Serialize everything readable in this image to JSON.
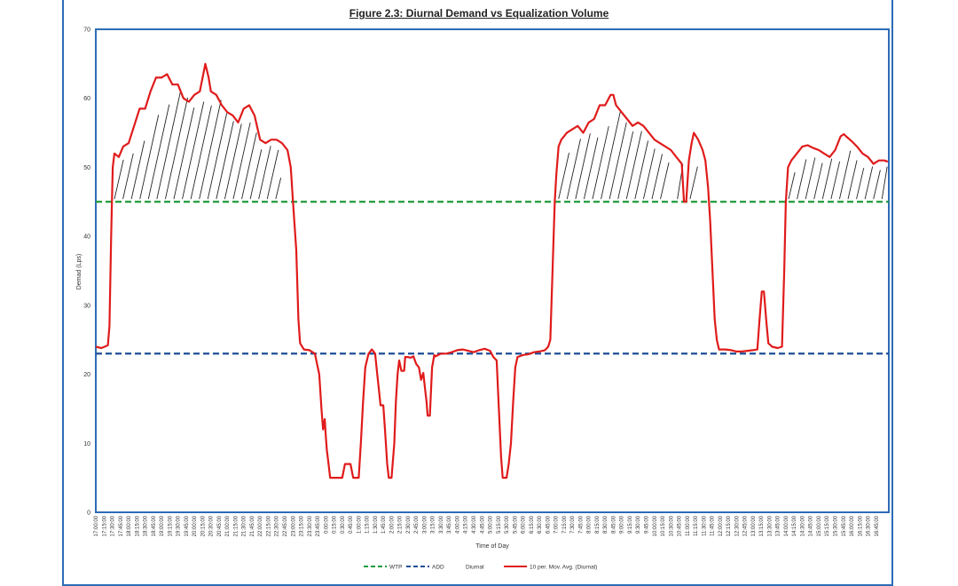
{
  "chart_data": {
    "type": "line",
    "title": "Figure 2.3: Diurnal Demand vs Equalization Volume",
    "xlabel": "Time of Day",
    "ylabel": "Demad (Lps)",
    "ylim": [
      0,
      70
    ],
    "yticks": [
      0,
      10,
      20,
      30,
      40,
      50,
      60,
      70
    ],
    "grid": false,
    "legend_position": "bottom",
    "x_tick_labels": [
      "17:00:00",
      "17:15:00",
      "17:30:00",
      "17:45:00",
      "18:00:00",
      "18:15:00",
      "18:30:00",
      "18:45:00",
      "19:00:00",
      "19:15:00",
      "19:30:00",
      "19:45:00",
      "20:00:00",
      "20:15:00",
      "20:30:00",
      "20:45:00",
      "21:00:00",
      "21:15:00",
      "21:30:00",
      "21:45:00",
      "22:00:00",
      "22:15:00",
      "22:30:00",
      "22:45:00",
      "23:00:00",
      "23:15:00",
      "23:30:00",
      "23:45:00",
      "0:00:00",
      "0:15:00",
      "0:30:00",
      "0:45:00",
      "1:00:00",
      "1:15:00",
      "1:30:00",
      "1:45:00",
      "2:00:00",
      "2:15:00",
      "2:30:00",
      "2:45:00",
      "3:00:00",
      "3:15:00",
      "3:30:00",
      "3:45:00",
      "4:00:00",
      "4:15:00",
      "4:30:00",
      "4:45:00",
      "5:00:00",
      "5:15:00",
      "5:30:00",
      "5:45:00",
      "6:00:00",
      "6:15:00",
      "6:30:00",
      "6:45:00",
      "7:00:00",
      "7:15:00",
      "7:30:00",
      "7:45:00",
      "8:00:00",
      "8:15:00",
      "8:30:00",
      "8:45:00",
      "9:00:00",
      "9:15:00",
      "9:30:00",
      "9:45:00",
      "10:00:00",
      "10:15:00",
      "10:30:00",
      "10:45:00",
      "11:00:00",
      "11:15:00",
      "11:30:00",
      "11:45:00",
      "12:00:00",
      "12:15:00",
      "12:30:00",
      "12:45:00",
      "13:00:00",
      "13:15:00",
      "13:30:00",
      "13:45:00",
      "14:00:00",
      "14:15:00",
      "14:30:00",
      "14:45:00",
      "15:00:00",
      "15:15:00",
      "15:30:00",
      "15:45:00",
      "16:00:00",
      "16:15:00",
      "16:30:00",
      "16:45:00"
    ],
    "series": [
      {
        "name": "WTP",
        "color": "#1e9b3a",
        "style": "dashed",
        "constant": 45
      },
      {
        "name": "ADD",
        "color": "#1f4e96",
        "style": "dashed",
        "constant": 23
      },
      {
        "name": "Diurnal",
        "color": "#ffffff",
        "style": "none"
      },
      {
        "name": "10 per. Mov. Avg. (Diurnal)",
        "color": "#e01b1b",
        "style": "solid",
        "points": [
          [
            0,
            24
          ],
          [
            1,
            23.8
          ],
          [
            1.6,
            24
          ],
          [
            2.2,
            24.2
          ],
          [
            2.5,
            27
          ],
          [
            2.8,
            40
          ],
          [
            3.1,
            50
          ],
          [
            3.4,
            52
          ],
          [
            4.2,
            51.5
          ],
          [
            5,
            53
          ],
          [
            6,
            53.5
          ],
          [
            7,
            56
          ],
          [
            8,
            58.5
          ],
          [
            9,
            58.5
          ],
          [
            10,
            61
          ],
          [
            11,
            63
          ],
          [
            12,
            63
          ],
          [
            13,
            63.5
          ],
          [
            14,
            62
          ],
          [
            15,
            62
          ],
          [
            16,
            60
          ],
          [
            17,
            59.5
          ],
          [
            18,
            60.5
          ],
          [
            19,
            61
          ],
          [
            20,
            65
          ],
          [
            20.6,
            63
          ],
          [
            21,
            61
          ],
          [
            22,
            60.5
          ],
          [
            23,
            59
          ],
          [
            24,
            58
          ],
          [
            25,
            57.5
          ],
          [
            26,
            56.5
          ],
          [
            27,
            58.5
          ],
          [
            28,
            59
          ],
          [
            29,
            57.5
          ],
          [
            30,
            54
          ],
          [
            31,
            53.5
          ],
          [
            32,
            54
          ],
          [
            33,
            54
          ],
          [
            34,
            53.5
          ],
          [
            35,
            52.5
          ],
          [
            35.6,
            50
          ],
          [
            36,
            45
          ],
          [
            36.6,
            38
          ],
          [
            37,
            28
          ],
          [
            37.3,
            24.5
          ],
          [
            38,
            23.6
          ],
          [
            39,
            23.5
          ],
          [
            40,
            23
          ],
          [
            40.8,
            20
          ],
          [
            41.2,
            15
          ],
          [
            41.5,
            12
          ],
          [
            41.8,
            13.5
          ],
          [
            42,
            11
          ],
          [
            42.2,
            9
          ],
          [
            42.5,
            7
          ],
          [
            42.8,
            5
          ],
          [
            43,
            5
          ],
          [
            44,
            5
          ],
          [
            45,
            5
          ],
          [
            45.5,
            7
          ],
          [
            46.5,
            7
          ],
          [
            47,
            5
          ],
          [
            48,
            5
          ],
          [
            48.4,
            10
          ],
          [
            48.8,
            16
          ],
          [
            49.2,
            21
          ],
          [
            49.8,
            23
          ],
          [
            50.4,
            23.6
          ],
          [
            51,
            23
          ],
          [
            51.4,
            20
          ],
          [
            51.8,
            17
          ],
          [
            52,
            15.5
          ],
          [
            52.5,
            15.5
          ],
          [
            52.8,
            12
          ],
          [
            53.2,
            7
          ],
          [
            53.5,
            5
          ],
          [
            54,
            5
          ],
          [
            54.5,
            10
          ],
          [
            54.8,
            16
          ],
          [
            55.1,
            20
          ],
          [
            55.4,
            22
          ],
          [
            55.8,
            20.5
          ],
          [
            56.3,
            20.5
          ],
          [
            56.5,
            22.5
          ],
          [
            57,
            22.5
          ],
          [
            57.5,
            22.4
          ],
          [
            58,
            22.6
          ],
          [
            58.5,
            21.5
          ],
          [
            59,
            21
          ],
          [
            59.4,
            19.2
          ],
          [
            59.8,
            20.2
          ],
          [
            60.1,
            18
          ],
          [
            60.4,
            16
          ],
          [
            60.6,
            14
          ],
          [
            61,
            14
          ],
          [
            61.4,
            21
          ],
          [
            61.8,
            22.8
          ],
          [
            62,
            22.6
          ],
          [
            63,
            23
          ],
          [
            64,
            23
          ],
          [
            65,
            23.2
          ],
          [
            66,
            23.5
          ],
          [
            67,
            23.6
          ],
          [
            68,
            23.4
          ],
          [
            69,
            23.2
          ],
          [
            70,
            23.5
          ],
          [
            71,
            23.7
          ],
          [
            72,
            23.4
          ],
          [
            72.6,
            22.5
          ],
          [
            73.2,
            22
          ],
          [
            73.6,
            15
          ],
          [
            74,
            8
          ],
          [
            74.3,
            5
          ],
          [
            75,
            5
          ],
          [
            75.4,
            7
          ],
          [
            75.8,
            10
          ],
          [
            76.2,
            16
          ],
          [
            76.6,
            21
          ],
          [
            77,
            22.5
          ],
          [
            78,
            22.8
          ],
          [
            79,
            22.9
          ],
          [
            80,
            23.2
          ],
          [
            81,
            23.3
          ],
          [
            82,
            23.5
          ],
          [
            82.6,
            24
          ],
          [
            83,
            25
          ],
          [
            83.4,
            35
          ],
          [
            83.8,
            45
          ],
          [
            84.1,
            49
          ],
          [
            84.5,
            53
          ],
          [
            85,
            54
          ],
          [
            86,
            55
          ],
          [
            87,
            55.5
          ],
          [
            88,
            56
          ],
          [
            89,
            55
          ],
          [
            90,
            56.5
          ],
          [
            91,
            57
          ],
          [
            92,
            59
          ],
          [
            93,
            59
          ],
          [
            94,
            60.5
          ],
          [
            94.5,
            60.5
          ],
          [
            95,
            59
          ],
          [
            96,
            58
          ],
          [
            97,
            57
          ],
          [
            98,
            56
          ],
          [
            99,
            56.5
          ],
          [
            100,
            56
          ],
          [
            101,
            55
          ],
          [
            102,
            54
          ],
          [
            103,
            53.5
          ],
          [
            104,
            53
          ],
          [
            105,
            52.5
          ],
          [
            106,
            51.5
          ],
          [
            107,
            50.5
          ],
          [
            107.4,
            45
          ],
          [
            107.8,
            45
          ],
          [
            108.3,
            51
          ],
          [
            108.8,
            53.5
          ],
          [
            109.2,
            55
          ],
          [
            110,
            54
          ],
          [
            110.8,
            52.5
          ],
          [
            111.3,
            51
          ],
          [
            111.8,
            47
          ],
          [
            112.2,
            42
          ],
          [
            112.6,
            35
          ],
          [
            113,
            28
          ],
          [
            113.4,
            25
          ],
          [
            113.8,
            23.6
          ],
          [
            115,
            23.6
          ],
          [
            116,
            23.5
          ],
          [
            117,
            23.3
          ],
          [
            118,
            23.3
          ],
          [
            119,
            23.4
          ],
          [
            120,
            23.5
          ],
          [
            120.8,
            23.6
          ],
          [
            121.2,
            28
          ],
          [
            121.6,
            32
          ],
          [
            122,
            32
          ],
          [
            122.4,
            28
          ],
          [
            122.8,
            24.5
          ],
          [
            123.5,
            24
          ],
          [
            124.5,
            23.8
          ],
          [
            125.3,
            24
          ],
          [
            125.7,
            35
          ],
          [
            126,
            45
          ],
          [
            126.4,
            50
          ],
          [
            127,
            51
          ],
          [
            128,
            52
          ],
          [
            129,
            53
          ],
          [
            130,
            53.2
          ],
          [
            131,
            52.8
          ],
          [
            132,
            52.5
          ],
          [
            133,
            52
          ],
          [
            134,
            51.5
          ],
          [
            135,
            52.5
          ],
          [
            136,
            54.5
          ],
          [
            136.6,
            54.8
          ],
          [
            137,
            54.5
          ],
          [
            138,
            53.8
          ],
          [
            139,
            53
          ],
          [
            140,
            52
          ],
          [
            141,
            51.5
          ],
          [
            142,
            50.5
          ],
          [
            143,
            51
          ],
          [
            144,
            51
          ],
          [
            144.6,
            50.8
          ]
        ]
      }
    ]
  }
}
